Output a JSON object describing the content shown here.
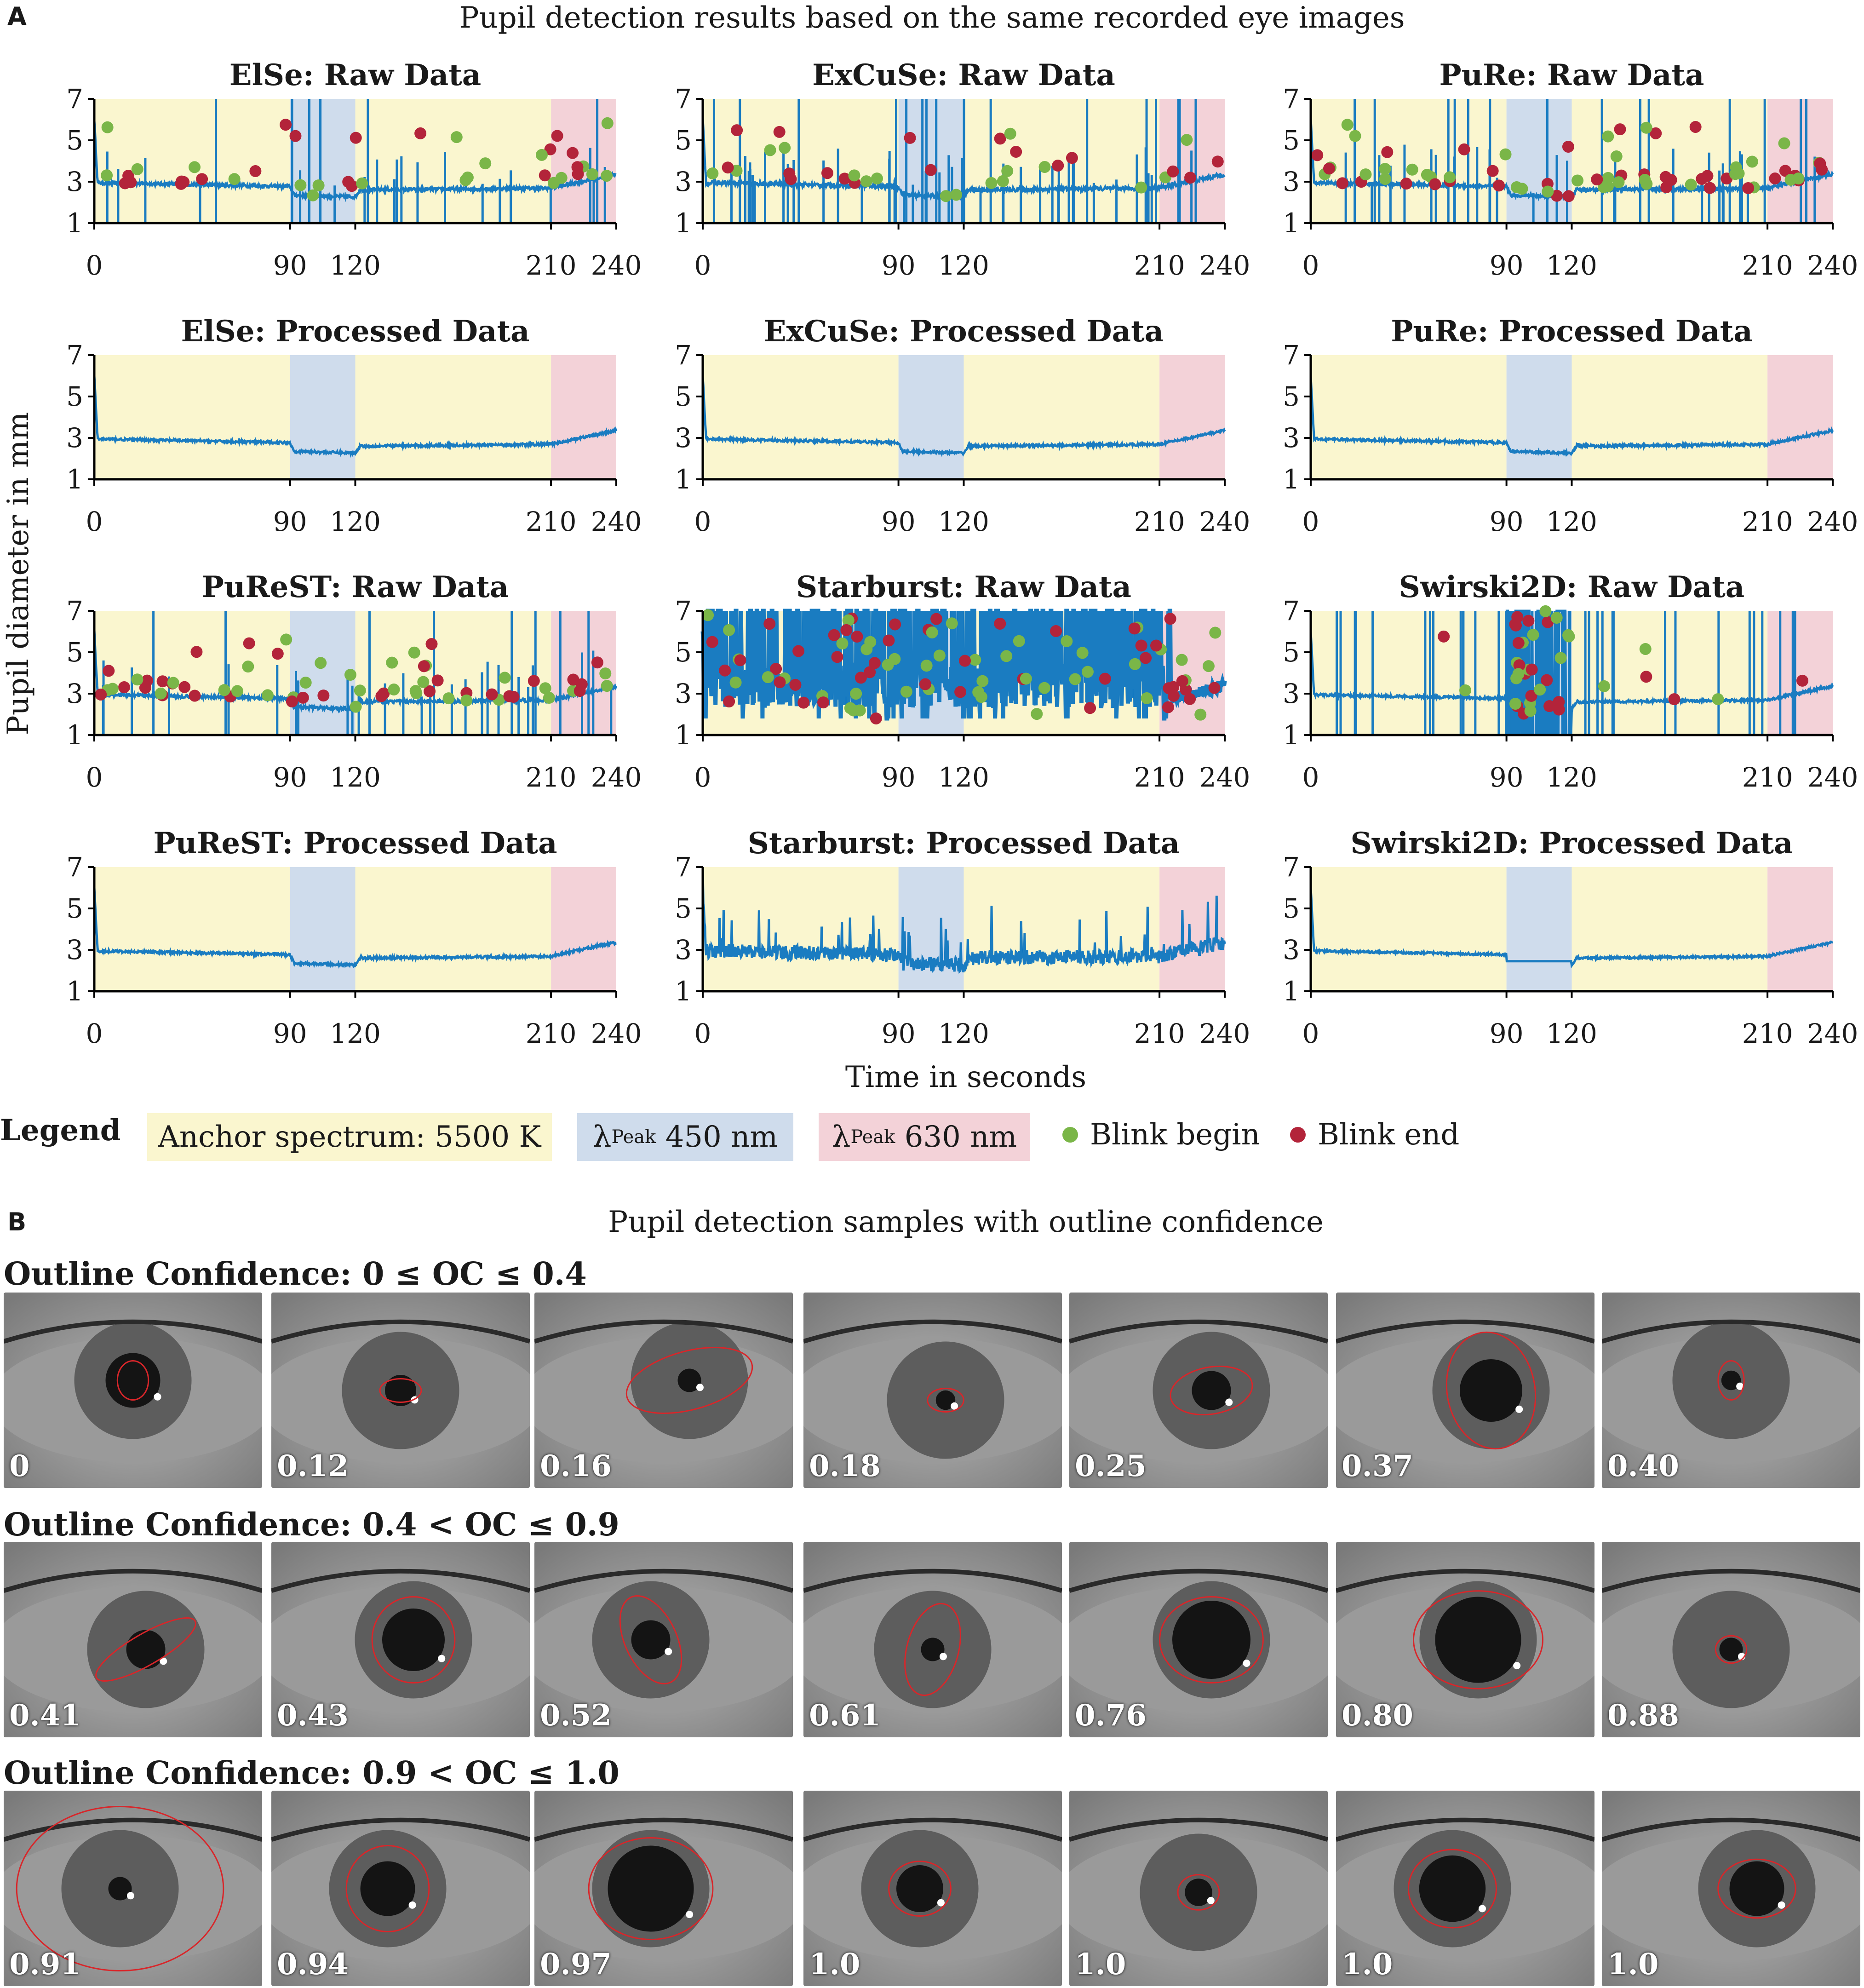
{
  "panel_a": {
    "letter": "A",
    "title": "Pupil detection results based on the same recorded eye images",
    "y_axis_label": "Pupil diameter in mm",
    "x_axis_label": "Time in seconds"
  },
  "colors": {
    "yellow": "#faf6cf",
    "blue": "#cfdcec",
    "red": "#f3d2d8",
    "line": "#1a7cc1",
    "blink_begin": "#7ab648",
    "blink_end": "#b3243a"
  },
  "chart_data": [
    {
      "type": "line",
      "title": "ElSe: Raw Data",
      "mode": "raw",
      "noise": 0.08,
      "spikes": 26,
      "dots": 40,
      "xlabel": "",
      "ylabel": "",
      "ylim": [
        1,
        7
      ],
      "xticks": [
        0,
        90,
        120,
        210,
        240
      ],
      "yticks": [
        1,
        3,
        5,
        7
      ],
      "regions": [
        {
          "from": 0,
          "to": 90,
          "label": "Anchor spectrum: 5500 K"
        },
        {
          "from": 90,
          "to": 120,
          "label": "λPeak 450 nm"
        },
        {
          "from": 120,
          "to": 210,
          "label": "Anchor spectrum: 5500 K"
        },
        {
          "from": 210,
          "to": 240,
          "label": "λPeak 630 nm"
        }
      ]
    },
    {
      "type": "line",
      "title": "ExCuSe: Raw Data",
      "mode": "raw",
      "noise": 0.1,
      "spikes": 60,
      "dots": 34,
      "xlabel": "",
      "ylabel": "",
      "ylim": [
        1,
        7
      ],
      "xticks": [
        0,
        90,
        120,
        210,
        240
      ],
      "yticks": [
        1,
        3,
        5,
        7
      ]
    },
    {
      "type": "line",
      "title": "PuRe: Raw Data",
      "mode": "raw",
      "noise": 0.08,
      "spikes": 40,
      "dots": 70,
      "xlabel": "",
      "ylabel": "",
      "ylim": [
        1,
        7
      ],
      "xticks": [
        0,
        90,
        120,
        210,
        240
      ],
      "yticks": [
        1,
        3,
        5,
        7
      ]
    },
    {
      "type": "line",
      "title": "ElSe: Processed Data",
      "mode": "proc",
      "noise": 0.06,
      "xlabel": "",
      "ylabel": "",
      "ylim": [
        1,
        7
      ],
      "xticks": [
        0,
        90,
        120,
        210,
        240
      ],
      "yticks": [
        1,
        3,
        5,
        7
      ]
    },
    {
      "type": "line",
      "title": "ExCuSe: Processed Data",
      "mode": "proc",
      "noise": 0.06,
      "xlabel": "",
      "ylabel": "",
      "ylim": [
        1,
        7
      ],
      "xticks": [
        0,
        90,
        120,
        210,
        240
      ],
      "yticks": [
        1,
        3,
        5,
        7
      ]
    },
    {
      "type": "line",
      "title": "PuRe: Processed Data",
      "mode": "proc",
      "noise": 0.06,
      "xlabel": "",
      "ylabel": "",
      "ylim": [
        1,
        7
      ],
      "xticks": [
        0,
        90,
        120,
        210,
        240
      ],
      "yticks": [
        1,
        3,
        5,
        7
      ]
    },
    {
      "type": "line",
      "title": "PuReST: Raw Data",
      "mode": "raw",
      "noise": 0.08,
      "spikes": 34,
      "dots": 64,
      "xlabel": "",
      "ylabel": "",
      "ylim": [
        1,
        7
      ],
      "xticks": [
        0,
        90,
        120,
        210,
        240
      ],
      "yticks": [
        1,
        3,
        5,
        7
      ]
    },
    {
      "type": "line",
      "title": "Starburst: Raw Data",
      "mode": "starburst",
      "noise": 0.3,
      "spikes": 0,
      "dots": 90,
      "xlabel": "",
      "ylabel": "",
      "ylim": [
        1,
        7
      ],
      "xticks": [
        0,
        90,
        120,
        210,
        240
      ],
      "yticks": [
        1,
        3,
        5,
        7
      ]
    },
    {
      "type": "line",
      "title": "Swirski2D: Raw Data",
      "mode": "swirski",
      "noise": 0.06,
      "spikes": 40,
      "dots": 40,
      "xlabel": "",
      "ylabel": "",
      "ylim": [
        1,
        7
      ],
      "xticks": [
        0,
        90,
        120,
        210,
        240
      ],
      "yticks": [
        1,
        3,
        5,
        7
      ]
    },
    {
      "type": "line",
      "title": "PuReST: Processed Data",
      "mode": "proc",
      "noise": 0.06,
      "xlabel": "",
      "ylabel": "",
      "ylim": [
        1,
        7
      ],
      "xticks": [
        0,
        90,
        120,
        210,
        240
      ],
      "yticks": [
        1,
        3,
        5,
        7
      ]
    },
    {
      "type": "line",
      "title": "Starburst: Processed Data",
      "mode": "proc",
      "noise": 0.35,
      "xlabel": "",
      "ylabel": "",
      "ylim": [
        1,
        7
      ],
      "xticks": [
        0,
        90,
        120,
        210,
        240
      ],
      "yticks": [
        1,
        3,
        5,
        7
      ]
    },
    {
      "type": "line",
      "title": "Swirski2D: Processed Data",
      "mode": "proc",
      "noise": 0.05,
      "flat_blue": true,
      "xlabel": "",
      "ylabel": "",
      "ylim": [
        1,
        7
      ],
      "xticks": [
        0,
        90,
        120,
        210,
        240
      ],
      "yticks": [
        1,
        3,
        5,
        7
      ]
    }
  ],
  "legend": {
    "title": "Legend",
    "anchor": "Anchor spectrum: 5500 K",
    "lambda": "λ",
    "peak_sub": "Peak",
    "blue_val": "450 nm",
    "red_val": "630 nm",
    "blink_begin": "Blink begin",
    "blink_end": "Blink end"
  },
  "panel_b": {
    "letter": "B",
    "title": "Pupil detection samples with outline confidence",
    "groups": [
      {
        "title": "Outline Confidence: 0 ≤ OC ≤ 0.4",
        "values": [
          "0",
          "0.12",
          "0.16",
          "0.18",
          "0.25",
          "0.37",
          "0.40"
        ]
      },
      {
        "title": "Outline Confidence: 0.4 < OC ≤ 0.9",
        "values": [
          "0.41",
          "0.43",
          "0.52",
          "0.61",
          "0.76",
          "0.80",
          "0.88"
        ]
      },
      {
        "title": "Outline Confidence: 0.9 < OC ≤ 1.0",
        "values": [
          "0.91",
          "0.94",
          "0.97",
          "1.0",
          "1.0",
          "1.0",
          "1.0"
        ]
      }
    ]
  }
}
